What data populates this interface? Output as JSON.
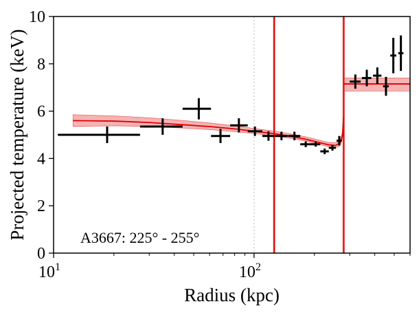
{
  "chart_data": {
    "type": "scatter",
    "title": "",
    "xlabel": "Radius (kpc)",
    "ylabel": "Projected temperature (keV)",
    "xscale": "log",
    "xlim": [
      10,
      600
    ],
    "ylim": [
      0,
      10
    ],
    "x_ticks": [
      {
        "value": 10,
        "base": "10",
        "exp": "1"
      },
      {
        "value": 100,
        "base": "10",
        "exp": "2"
      }
    ],
    "y_ticks": [
      0,
      2,
      4,
      6,
      8,
      10
    ],
    "grid": "vertical dotted at x-ticks",
    "annotation": "A3667: 225° - 255°",
    "colors": {
      "data": "#000000",
      "model": "#dd0000",
      "band": "#f4a6a6"
    },
    "series": [
      {
        "kind": "data",
        "points": [
          {
            "x": 18.5,
            "xlo": 10.5,
            "xhi": 27,
            "y": 5.0,
            "yerr": 0.35
          },
          {
            "x": 35,
            "xlo": 27,
            "xhi": 44,
            "y": 5.35,
            "yerr": 0.35
          },
          {
            "x": 53,
            "xlo": 44,
            "xhi": 61,
            "y": 6.1,
            "yerr": 0.45
          },
          {
            "x": 68,
            "xlo": 61,
            "xhi": 76,
            "y": 4.95,
            "yerr": 0.3
          },
          {
            "x": 84,
            "xlo": 76,
            "xhi": 93,
            "y": 5.4,
            "yerr": 0.3
          },
          {
            "x": 101,
            "xlo": 93,
            "xhi": 110,
            "y": 5.15,
            "yerr": 0.2
          },
          {
            "x": 118,
            "xlo": 110,
            "xhi": 126,
            "y": 4.95,
            "yerr": 0.2
          },
          {
            "x": 137,
            "xlo": 127,
            "xhi": 147,
            "y": 4.95,
            "yerr": 0.18
          },
          {
            "x": 159,
            "xlo": 148,
            "xhi": 170,
            "y": 4.95,
            "yerr": 0.18
          },
          {
            "x": 181,
            "xlo": 170,
            "xhi": 192,
            "y": 4.6,
            "yerr": 0.12
          },
          {
            "x": 203,
            "xlo": 192,
            "xhi": 214,
            "y": 4.6,
            "yerr": 0.1
          },
          {
            "x": 225,
            "xlo": 214,
            "xhi": 236,
            "y": 4.3,
            "yerr": 0.12
          },
          {
            "x": 246,
            "xlo": 236,
            "xhi": 256,
            "y": 4.45,
            "yerr": 0.12
          },
          {
            "x": 266,
            "xlo": 258,
            "xhi": 274,
            "y": 4.75,
            "yerr": 0.2
          },
          {
            "x": 320,
            "xlo": 300,
            "xhi": 340,
            "y": 7.25,
            "yerr": 0.3
          },
          {
            "x": 365,
            "xlo": 345,
            "xhi": 385,
            "y": 7.4,
            "yerr": 0.35
          },
          {
            "x": 412,
            "xlo": 392,
            "xhi": 432,
            "y": 7.5,
            "yerr": 0.35
          },
          {
            "x": 455,
            "xlo": 440,
            "xhi": 470,
            "y": 7.05,
            "yerr": 0.4
          },
          {
            "x": 495,
            "xlo": 478,
            "xhi": 512,
            "y": 8.35,
            "yerr": 0.75
          },
          {
            "x": 540,
            "xlo": 524,
            "xhi": 556,
            "y": 8.45,
            "yerr": 0.75
          }
        ]
      },
      {
        "kind": "model",
        "inner": [
          {
            "x": 12.5,
            "y": 5.6,
            "lo": 5.35,
            "hi": 5.85
          },
          {
            "x": 20,
            "y": 5.58,
            "lo": 5.38,
            "hi": 5.8
          },
          {
            "x": 30,
            "y": 5.52,
            "lo": 5.35,
            "hi": 5.72
          },
          {
            "x": 45,
            "y": 5.42,
            "lo": 5.28,
            "hi": 5.6
          },
          {
            "x": 60,
            "y": 5.35,
            "lo": 5.22,
            "hi": 5.5
          },
          {
            "x": 80,
            "y": 5.25,
            "lo": 5.13,
            "hi": 5.38
          },
          {
            "x": 100,
            "y": 5.15,
            "lo": 5.05,
            "hi": 5.27
          },
          {
            "x": 125,
            "y": 5.05,
            "lo": 4.96,
            "hi": 5.16
          },
          {
            "x": 150,
            "y": 4.95,
            "lo": 4.86,
            "hi": 5.05
          },
          {
            "x": 180,
            "y": 4.82,
            "lo": 4.74,
            "hi": 4.92
          },
          {
            "x": 210,
            "y": 4.68,
            "lo": 4.6,
            "hi": 4.78
          },
          {
            "x": 235,
            "y": 4.58,
            "lo": 4.5,
            "hi": 4.68
          },
          {
            "x": 255,
            "y": 4.55,
            "lo": 4.45,
            "hi": 4.67
          },
          {
            "x": 268,
            "y": 4.65,
            "lo": 4.53,
            "hi": 4.78
          },
          {
            "x": 276,
            "y": 4.95,
            "lo": 4.82,
            "hi": 5.1
          },
          {
            "x": 280,
            "y": 5.8,
            "lo": 5.7,
            "hi": 5.9
          }
        ],
        "outer": [
          {
            "x": 280,
            "y": 7.15,
            "lo": 6.85,
            "hi": 7.4
          },
          {
            "x": 600,
            "y": 7.15,
            "lo": 6.85,
            "hi": 7.4
          }
        ],
        "vlines": [
          126,
          280
        ]
      }
    ]
  }
}
